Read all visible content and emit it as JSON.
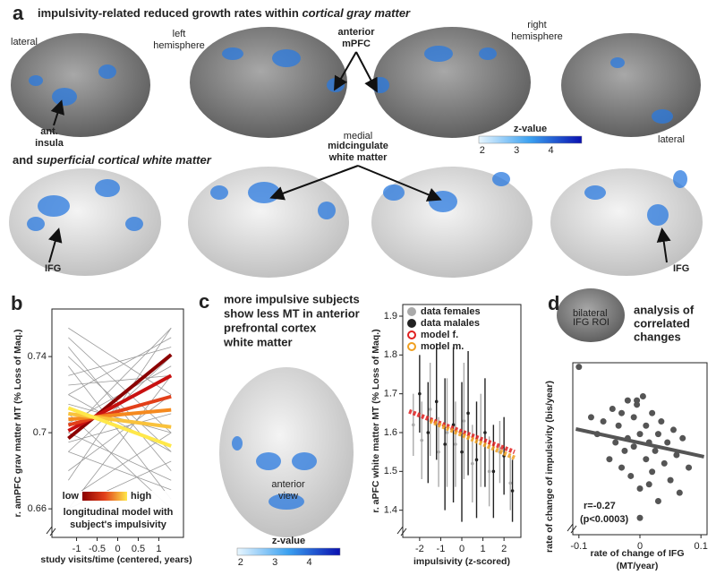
{
  "panel_a": {
    "label": "a",
    "title_1": "impulsivity-related reduced growth rates within ",
    "title_1_em": "cortical gray matter",
    "lateral_left": "lateral",
    "left_hemisphere": [
      "left",
      "hemisphere"
    ],
    "anterior_mpfc": [
      "anterior",
      "mPFC"
    ],
    "right_hemisphere": [
      "right",
      "hemisphere"
    ],
    "ant_insula": [
      "ant.",
      "insula"
    ],
    "medial": "medial",
    "lateral_right": "lateral",
    "colorbar": {
      "title": "z-value",
      "ticks": [
        2,
        3,
        4
      ]
    },
    "title_2": "and ",
    "title_2_em": "superficial cortical white matter",
    "midcingulate": [
      "midcingulate",
      "white matter"
    ],
    "ifg_left": "IFG",
    "ifg_right": "IFG"
  },
  "chart_data": [
    {
      "type": "line",
      "panel_label": "b",
      "ylabel": "r. amPFC grav matter MT (% Loss of Maq.)",
      "xlabel": "study visits/time (centered, years)",
      "xlim": [
        -1.6,
        1.6
      ],
      "ylim": [
        0.645,
        0.765
      ],
      "xticks": [
        -1,
        -0.5,
        0,
        0.5,
        1
      ],
      "yticks": [
        0.66,
        0.7,
        0.74
      ],
      "x": [
        -1.2,
        1.3
      ],
      "subject_lines": {
        "color": "#9a9a9a",
        "x": [
          -1.2,
          1.3
        ],
        "values": [
          [
            0.745,
            0.68
          ],
          [
            0.66,
            0.73
          ],
          [
            0.72,
            0.69
          ],
          [
            0.7,
            0.755
          ],
          [
            0.735,
            0.665
          ],
          [
            0.68,
            0.72
          ],
          [
            0.75,
            0.7
          ],
          [
            0.69,
            0.74
          ],
          [
            0.71,
            0.66
          ],
          [
            0.725,
            0.73
          ],
          [
            0.665,
            0.7
          ],
          [
            0.73,
            0.745
          ],
          [
            0.7,
            0.675
          ],
          [
            0.755,
            0.72
          ],
          [
            0.675,
            0.755
          ],
          [
            0.715,
            0.7
          ],
          [
            0.74,
            0.69
          ],
          [
            0.69,
            0.67
          ],
          [
            0.705,
            0.735
          ],
          [
            0.66,
            0.685
          ],
          [
            0.72,
            0.75
          ],
          [
            0.695,
            0.71
          ]
        ]
      },
      "series": [
        {
          "color": "#8b0000",
          "values": [
            0.697,
            0.741
          ]
        },
        {
          "color": "#c81010",
          "values": [
            0.701,
            0.73
          ]
        },
        {
          "color": "#e2401a",
          "values": [
            0.704,
            0.719
          ]
        },
        {
          "color": "#f58a1f",
          "values": [
            0.707,
            0.712
          ]
        },
        {
          "color": "#f9c23c",
          "values": [
            0.71,
            0.703
          ]
        },
        {
          "color": "#ffe84a",
          "values": [
            0.713,
            0.693
          ]
        }
      ],
      "legend_title": [
        "longitudinal model with",
        "subject's impulsivity"
      ],
      "legend_low": "low",
      "legend_high": "high"
    },
    {
      "type": "scatter",
      "panel_label": "c",
      "heading": [
        "more impulsive subjects",
        "show less MT in anterior",
        "prefrontal cortex",
        "white matter"
      ],
      "view_label": [
        "anterior",
        "view"
      ],
      "colorbar": {
        "title": "z-value",
        "ticks": [
          2,
          3,
          4
        ]
      },
      "ylabel": "r. aPFC white matter MT (% Loss of Maq.)",
      "xlabel": "impulsivity (z-scored)",
      "xlim": [
        -2.8,
        2.8
      ],
      "ylim": [
        1.33,
        1.93
      ],
      "xticks": [
        -2,
        -1,
        0,
        1,
        2
      ],
      "yticks": [
        1.4,
        1.5,
        1.6,
        1.7,
        1.8,
        1.9
      ],
      "series": [
        {
          "name": "data females",
          "color": "#aaaaaa",
          "x": [
            -2.3,
            -1.9,
            -1.5,
            -1.1,
            -0.7,
            -0.3,
            0.1,
            0.5,
            0.9,
            1.3,
            1.8,
            2.3
          ],
          "values": [
            1.62,
            1.58,
            1.66,
            1.55,
            1.6,
            1.57,
            1.63,
            1.52,
            1.58,
            1.5,
            1.55,
            1.47
          ],
          "errors": [
            0.08,
            0.1,
            0.12,
            0.09,
            0.14,
            0.11,
            0.15,
            0.1,
            0.12,
            0.09,
            0.08,
            0.07
          ]
        },
        {
          "name": "data malales",
          "color": "#222222",
          "x": [
            -2.0,
            -1.6,
            -1.2,
            -0.8,
            -0.4,
            0,
            0.3,
            0.7,
            1.1,
            1.5,
            2.0,
            2.4
          ],
          "values": [
            1.7,
            1.6,
            1.68,
            1.57,
            1.62,
            1.55,
            1.65,
            1.53,
            1.6,
            1.5,
            1.54,
            1.45
          ],
          "errors": [
            0.1,
            0.13,
            0.15,
            0.17,
            0.2,
            0.18,
            0.16,
            0.15,
            0.14,
            0.12,
            0.1,
            0.08
          ]
        },
        {
          "name": "model f.",
          "color": "#e02020",
          "x": [
            -2.5,
            2.5
          ],
          "values": [
            1.655,
            1.55
          ]
        },
        {
          "name": "model m.",
          "color": "#f0a020",
          "x": [
            -1.5,
            2.5
          ],
          "values": [
            1.63,
            1.535
          ]
        }
      ]
    },
    {
      "type": "scatter",
      "panel_label": "d",
      "heading": [
        "analysis of",
        "correlated",
        "changes"
      ],
      "roi_label": [
        "bilateral",
        "IFG ROI"
      ],
      "ylabel": "rate of change of impulsivity (bis/year)",
      "xlabel": [
        "rate of change of IFG",
        "(MT/year)"
      ],
      "stat": [
        "r=-0.27",
        "(p<0.0003)"
      ],
      "xlim": [
        -0.11,
        0.11
      ],
      "ylim": [
        -0.1,
        0.105
      ],
      "xticks": [
        -0.1,
        0,
        0.1
      ],
      "color": "#555555",
      "x": [
        -0.1,
        -0.07,
        -0.06,
        -0.05,
        -0.045,
        -0.04,
        -0.035,
        -0.03,
        -0.03,
        -0.025,
        -0.02,
        -0.02,
        -0.015,
        -0.01,
        -0.01,
        -0.005,
        0,
        0,
        0.005,
        0.01,
        0.01,
        0.015,
        0.02,
        0.02,
        0.025,
        0.03,
        0.03,
        0.035,
        0.04,
        0.045,
        0.05,
        0.055,
        0.06,
        0.065,
        0.07,
        0.08,
        -0.08,
        0.0,
        -0.005,
        0.015
      ],
      "values": [
        0.1,
        0.02,
        0.035,
        -0.01,
        0.05,
        0.01,
        0.03,
        -0.02,
        0.045,
        0.0,
        0.06,
        0.015,
        -0.03,
        0.04,
        0.005,
        0.055,
        0.02,
        -0.045,
        0.065,
        -0.01,
        0.03,
        0.01,
        -0.025,
        0.045,
        0.0,
        0.02,
        -0.06,
        0.035,
        -0.015,
        0.01,
        -0.035,
        0.025,
        -0.005,
        -0.05,
        0.015,
        -0.02,
        0.04,
        -0.08,
        0.06,
        -0.04
      ],
      "fit": {
        "x": [
          -0.105,
          0.105
        ],
        "values": [
          0.026,
          -0.007
        ]
      }
    }
  ]
}
